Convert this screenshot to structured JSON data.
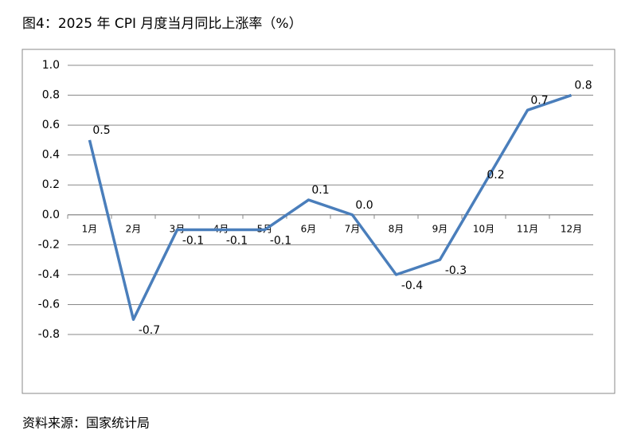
{
  "title": "图4：2025 年 CPI 月度当月同比上涨率（%）",
  "source": "资料来源：国家统计局",
  "chart_data": {
    "type": "line",
    "categories": [
      "1月",
      "2月",
      "3月",
      "4月",
      "5月",
      "6月",
      "7月",
      "8月",
      "9月",
      "10月",
      "11月",
      "12月"
    ],
    "values": [
      0.5,
      -0.7,
      -0.1,
      -0.1,
      -0.1,
      0.1,
      0.0,
      -0.4,
      -0.3,
      0.2,
      0.7,
      0.8
    ],
    "value_labels": [
      "0.5",
      "-0.7",
      "-0.1",
      "-0.1",
      "-0.1",
      "0.1",
      "0.0",
      "-0.4",
      "-0.3",
      "0.2",
      "0.7",
      "0.8"
    ],
    "color": "#4a7ebb",
    "ylim": [
      -0.8,
      1.0
    ],
    "yticks": [
      {
        "value": 1.0,
        "label": "1.0"
      },
      0.8,
      0.6,
      0.4,
      0.2,
      {
        "value": 0,
        "label": "0.0"
      },
      -0.2,
      -0.4,
      -0.6,
      -0.8
    ],
    "grid": true
  }
}
